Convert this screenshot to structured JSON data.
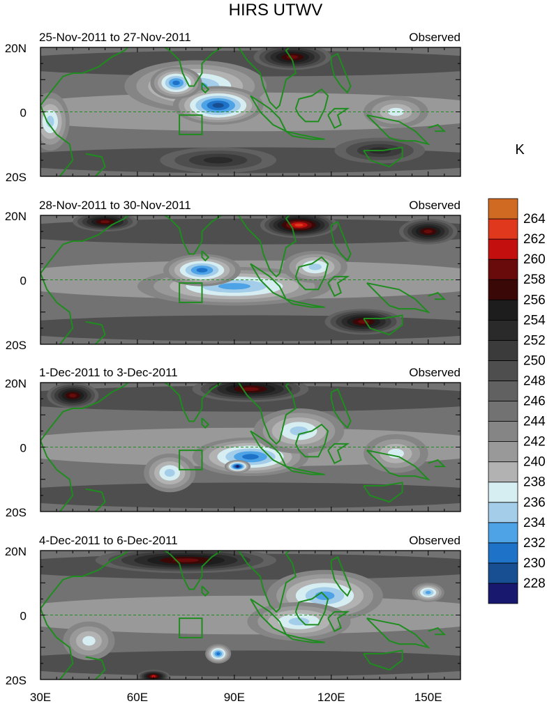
{
  "title": "HIRS UTWV",
  "colorbar": {
    "unit": "K",
    "levels": [
      228,
      230,
      232,
      234,
      236,
      238,
      240,
      242,
      244,
      246,
      248,
      250,
      252,
      254,
      256,
      258,
      260,
      262,
      264
    ],
    "colors": [
      "#18196e",
      "#174f92",
      "#1e73c8",
      "#4da3e6",
      "#a3cde8",
      "#d6eef2",
      "#b2b2b2",
      "#999999",
      "#858585",
      "#727272",
      "#616161",
      "#4e4e4e",
      "#3b3b3b",
      "#2a2a2a",
      "#1d1d1d",
      "#3b0808",
      "#6a0b0b",
      "#c40f0f",
      "#e0381c",
      "#d06a23"
    ]
  },
  "coast_color": "#1e8c1e",
  "x_axis": {
    "ticks": [
      "30E",
      "60E",
      "90E",
      "120E",
      "150E"
    ],
    "values": [
      30,
      60,
      90,
      120,
      150
    ],
    "lon_min": 30,
    "lon_max": 160
  },
  "y_axis": {
    "ticks": [
      "20N",
      "0",
      "20S"
    ],
    "values": [
      20,
      0,
      -20
    ],
    "lat_min": -20,
    "lat_max": 20
  },
  "box": {
    "lon_min": 73,
    "lon_max": 80,
    "lat_min": -7,
    "lat_max": -1
  },
  "panels": [
    {
      "date_range": "25-Nov-2011 to 27-Nov-2011",
      "label": "Observed",
      "blobs": [
        {
          "lon": 78,
          "lat": 8,
          "rx": 22,
          "ry": 8,
          "v": 233
        },
        {
          "lon": 85,
          "lat": 2,
          "rx": 14,
          "ry": 6,
          "v": 229
        },
        {
          "lon": 72,
          "lat": 9,
          "rx": 8,
          "ry": 5,
          "v": 231
        },
        {
          "lon": 140,
          "lat": 0,
          "rx": 10,
          "ry": 5,
          "v": 236
        },
        {
          "lon": 33,
          "lat": -3,
          "rx": 6,
          "ry": 9,
          "v": 235
        },
        {
          "lon": 108,
          "lat": 17,
          "rx": 12,
          "ry": 4,
          "v": 258
        },
        {
          "lon": 85,
          "lat": -15,
          "rx": 18,
          "ry": 4,
          "v": 252
        },
        {
          "lon": 135,
          "lat": -12,
          "rx": 14,
          "ry": 4,
          "v": 252
        }
      ]
    },
    {
      "date_range": "28-Nov-2011 to 30-Nov-2011",
      "label": "Observed",
      "blobs": [
        {
          "lon": 90,
          "lat": -2,
          "rx": 30,
          "ry": 6,
          "v": 232
        },
        {
          "lon": 80,
          "lat": 3,
          "rx": 12,
          "ry": 5,
          "v": 230
        },
        {
          "lon": 115,
          "lat": 4,
          "rx": 10,
          "ry": 5,
          "v": 234
        },
        {
          "lon": 110,
          "lat": 17,
          "rx": 12,
          "ry": 4,
          "v": 262
        },
        {
          "lon": 50,
          "lat": 18,
          "rx": 10,
          "ry": 3,
          "v": 258
        },
        {
          "lon": 150,
          "lat": 15,
          "rx": 9,
          "ry": 4,
          "v": 258
        },
        {
          "lon": 130,
          "lat": -13,
          "rx": 12,
          "ry": 4,
          "v": 258
        }
      ]
    },
    {
      "date_range": "1-Dec-2011 to 3-Dec-2011",
      "label": "Observed",
      "blobs": [
        {
          "lon": 95,
          "lat": -3,
          "rx": 18,
          "ry": 6,
          "v": 231
        },
        {
          "lon": 91,
          "lat": -6,
          "rx": 4,
          "ry": 2,
          "v": 227
        },
        {
          "lon": 110,
          "lat": 5,
          "rx": 14,
          "ry": 7,
          "v": 234
        },
        {
          "lon": 70,
          "lat": -8,
          "rx": 8,
          "ry": 6,
          "v": 235
        },
        {
          "lon": 140,
          "lat": -2,
          "rx": 10,
          "ry": 6,
          "v": 236
        },
        {
          "lon": 95,
          "lat": 18,
          "rx": 18,
          "ry": 4,
          "v": 257
        },
        {
          "lon": 40,
          "lat": 16,
          "rx": 8,
          "ry": 4,
          "v": 257
        }
      ]
    },
    {
      "date_range": "4-Dec-2011 to 6-Dec-2011",
      "label": "Observed",
      "blobs": [
        {
          "lon": 118,
          "lat": 6,
          "rx": 18,
          "ry": 8,
          "v": 232
        },
        {
          "lon": 110,
          "lat": -2,
          "rx": 16,
          "ry": 6,
          "v": 235
        },
        {
          "lon": 85,
          "lat": -12,
          "rx": 4,
          "ry": 3,
          "v": 230
        },
        {
          "lon": 45,
          "lat": -8,
          "rx": 8,
          "ry": 6,
          "v": 236
        },
        {
          "lon": 150,
          "lat": 7,
          "rx": 5,
          "ry": 3,
          "v": 233
        },
        {
          "lon": 75,
          "lat": 17,
          "rx": 28,
          "ry": 4,
          "v": 258
        },
        {
          "lon": 65,
          "lat": -19,
          "rx": 5,
          "ry": 2,
          "v": 260
        }
      ]
    }
  ],
  "coastlines": [
    [
      [
        30,
        2
      ],
      [
        33,
        6
      ],
      [
        37,
        11
      ],
      [
        40,
        12
      ],
      [
        43,
        12
      ],
      [
        48,
        14
      ],
      [
        52,
        17
      ],
      [
        56,
        19
      ],
      [
        58,
        21
      ]
    ],
    [
      [
        30,
        2
      ],
      [
        32,
        -3
      ],
      [
        35,
        -7
      ],
      [
        39,
        -10
      ],
      [
        40,
        -15
      ],
      [
        36,
        -20
      ]
    ],
    [
      [
        44,
        -13
      ],
      [
        49,
        -14
      ],
      [
        50,
        -17
      ],
      [
        47,
        -20
      ]
    ],
    [
      [
        67,
        21
      ],
      [
        70,
        19
      ],
      [
        73,
        16
      ],
      [
        74,
        12
      ],
      [
        76,
        8
      ],
      [
        77.5,
        8
      ],
      [
        80,
        12
      ],
      [
        80,
        15
      ],
      [
        83,
        18
      ],
      [
        86,
        20
      ],
      [
        90,
        22
      ],
      [
        94,
        16
      ],
      [
        98,
        12
      ],
      [
        99,
        8
      ],
      [
        101,
        3
      ],
      [
        103,
        1
      ],
      [
        104,
        2
      ],
      [
        106,
        10
      ],
      [
        109,
        12
      ],
      [
        108,
        16
      ],
      [
        106,
        19
      ],
      [
        108,
        21
      ]
    ],
    [
      [
        80,
        9
      ],
      [
        82,
        7
      ],
      [
        81,
        6
      ],
      [
        80,
        7
      ],
      [
        80,
        9
      ]
    ],
    [
      [
        95,
        5
      ],
      [
        98,
        3
      ],
      [
        101,
        1
      ],
      [
        104,
        -2
      ],
      [
        106,
        -6
      ],
      [
        102,
        -4
      ],
      [
        98,
        0
      ],
      [
        95,
        5
      ]
    ],
    [
      [
        106,
        -6
      ],
      [
        110,
        -7
      ],
      [
        115,
        -8
      ],
      [
        118,
        -8.5
      ],
      [
        114,
        -8.5
      ],
      [
        108,
        -7.5
      ],
      [
        106,
        -6
      ]
    ],
    [
      [
        109,
        1
      ],
      [
        110,
        4
      ],
      [
        114,
        5
      ],
      [
        117,
        7
      ],
      [
        119,
        5
      ],
      [
        118,
        1
      ],
      [
        116,
        -3
      ],
      [
        112,
        -3
      ],
      [
        110,
        -1
      ],
      [
        109,
        1
      ]
    ],
    [
      [
        119,
        -1
      ],
      [
        121,
        1
      ],
      [
        125,
        1
      ],
      [
        122,
        -1
      ],
      [
        123,
        -4
      ],
      [
        121,
        -5
      ],
      [
        120,
        -3
      ],
      [
        119,
        -1
      ]
    ],
    [
      [
        120,
        17
      ],
      [
        122,
        18
      ],
      [
        124,
        13
      ],
      [
        126,
        8
      ],
      [
        125,
        6
      ],
      [
        123,
        8
      ],
      [
        121,
        11
      ],
      [
        120,
        15
      ],
      [
        120,
        17
      ]
    ],
    [
      [
        131,
        -1
      ],
      [
        136,
        -2
      ],
      [
        141,
        -3
      ],
      [
        146,
        -6
      ],
      [
        150,
        -10
      ],
      [
        146,
        -9
      ],
      [
        141,
        -9
      ],
      [
        138,
        -8
      ],
      [
        134,
        -4
      ],
      [
        131,
        -1
      ]
    ],
    [
      [
        130,
        -12
      ],
      [
        136,
        -12
      ],
      [
        142,
        -11
      ],
      [
        142,
        -14
      ],
      [
        138,
        -17
      ],
      [
        132,
        -15
      ],
      [
        130,
        -12
      ]
    ],
    [
      [
        150,
        -5
      ],
      [
        153,
        -4
      ],
      [
        155,
        -6
      ],
      [
        152,
        -6
      ]
    ]
  ]
}
